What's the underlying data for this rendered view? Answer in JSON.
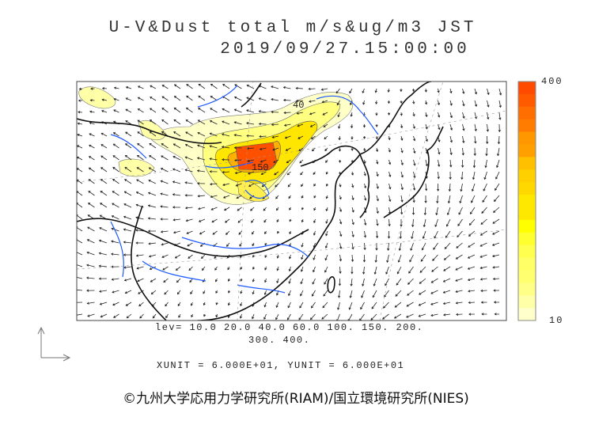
{
  "title": {
    "line1": "U-V&Dust total m/s&ug/m3 JST",
    "line2": "2019/09/27.15:00:00"
  },
  "colorbar": {
    "max_label": "400",
    "min_label": "10",
    "colors": [
      "#ff4a00",
      "#ff5a00",
      "#ff6e00",
      "#ff7c00",
      "#ff9800",
      "#ffa000",
      "#ffc000",
      "#ffd000",
      "#ffd800",
      "#ffe800",
      "#ffe800",
      "#ffff00",
      "#ffff30",
      "#ffff50",
      "#ffff66",
      "#ffff70",
      "#ffff88",
      "#ffffa8",
      "#ffffcc"
    ]
  },
  "contour_levels": {
    "line1": "lev= 10.0 20.0 40.0 60.0 100. 150. 200.",
    "line2": "300. 400."
  },
  "units": "XUNIT = 6.000E+01, YUNIT = 6.000E+01",
  "contour_labels": [
    "40",
    "150"
  ],
  "credit": "©九州大学応用力学研究所(RIAM)/国立環境研究所(NIES)",
  "colors": {
    "river": "#1e5aff",
    "coast": "#111111",
    "contour": "#555555"
  }
}
